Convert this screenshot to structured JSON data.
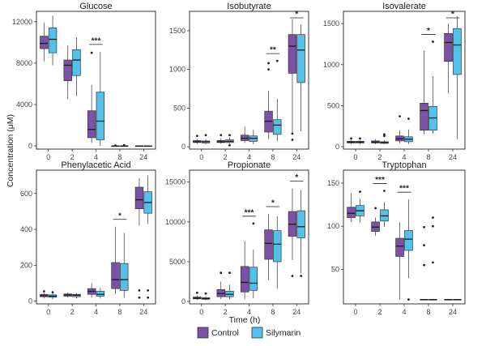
{
  "figure": {
    "xlabel": "Time (h)",
    "ylabel": "Concentration (μM)",
    "legend": {
      "entries": [
        "Control",
        "Silymarin"
      ],
      "colors": [
        "#7b52a7",
        "#55c1eb"
      ]
    },
    "edge_color": "#333333",
    "median_color": "#1a1a1a"
  },
  "chart_data": [
    {
      "type": "box",
      "title": "Glucose",
      "categories": [
        "0",
        "2",
        "4",
        "8",
        "24"
      ],
      "ylim": [
        -300,
        13000
      ],
      "yticks": [
        0,
        4000,
        8000,
        12000
      ],
      "series": [
        {
          "name": "Control",
          "boxes": [
            {
              "whislo": 8200,
              "q1": 9400,
              "med": 9900,
              "q3": 10600,
              "whishi": 11900,
              "fliers": []
            },
            {
              "whislo": 4500,
              "q1": 6300,
              "med": 7800,
              "q3": 8300,
              "whishi": 9700,
              "fliers": []
            },
            {
              "whislo": 300,
              "q1": 800,
              "med": 1600,
              "q3": 3400,
              "whishi": 5900,
              "fliers": [
                9000
              ]
            },
            {
              "whislo": 0,
              "q1": 0,
              "med": 0,
              "q3": 0,
              "whishi": 0,
              "fliers": [
                50
              ]
            },
            {
              "whislo": 0,
              "q1": 0,
              "med": 0,
              "q3": 0,
              "whishi": 0,
              "fliers": []
            }
          ]
        },
        {
          "name": "Silymarin",
          "boxes": [
            {
              "whislo": 7800,
              "q1": 9000,
              "med": 10300,
              "q3": 11400,
              "whishi": 12600,
              "fliers": []
            },
            {
              "whislo": 4800,
              "q1": 6800,
              "med": 8300,
              "q3": 9300,
              "whishi": 10500,
              "fliers": []
            },
            {
              "whislo": 0,
              "q1": 600,
              "med": 2400,
              "q3": 5200,
              "whishi": 9100,
              "fliers": []
            },
            {
              "whislo": 0,
              "q1": 0,
              "med": 0,
              "q3": 0,
              "whishi": 0,
              "fliers": [
                80
              ]
            },
            {
              "whislo": 0,
              "q1": 0,
              "med": 0,
              "q3": 0,
              "whishi": 0,
              "fliers": []
            }
          ]
        }
      ],
      "significance": [
        {
          "category": "4",
          "label": "***"
        }
      ]
    },
    {
      "type": "box",
      "title": "Isobutyrate",
      "categories": [
        "0",
        "2",
        "4",
        "8",
        "24"
      ],
      "ylim": [
        -30,
        1750
      ],
      "yticks": [
        0,
        500,
        1000,
        1500
      ],
      "series": [
        {
          "name": "Control",
          "boxes": [
            {
              "whislo": 40,
              "q1": 55,
              "med": 65,
              "q3": 80,
              "whishi": 100,
              "fliers": [
                140
              ]
            },
            {
              "whislo": 40,
              "q1": 55,
              "med": 65,
              "q3": 80,
              "whishi": 110,
              "fliers": [
                150
              ]
            },
            {
              "whislo": 50,
              "q1": 80,
              "med": 110,
              "q3": 150,
              "whishi": 260,
              "fliers": []
            },
            {
              "whislo": 100,
              "q1": 190,
              "med": 330,
              "q3": 460,
              "whishi": 720,
              "fliers": [
                1000,
                1080
              ]
            },
            {
              "whislo": 180,
              "q1": 950,
              "med": 1300,
              "q3": 1450,
              "whishi": 1650,
              "fliers": [
                90,
                170
              ]
            }
          ]
        },
        {
          "name": "Silymarin",
          "boxes": [
            {
              "whislo": 30,
              "q1": 50,
              "med": 65,
              "q3": 75,
              "whishi": 100,
              "fliers": [
                150
              ]
            },
            {
              "whislo": 40,
              "q1": 55,
              "med": 70,
              "q3": 90,
              "whishi": 120,
              "fliers": [
                20,
                150
              ]
            },
            {
              "whislo": 30,
              "q1": 70,
              "med": 110,
              "q3": 140,
              "whishi": 220,
              "fliers": []
            },
            {
              "whislo": 70,
              "q1": 160,
              "med": 280,
              "q3": 350,
              "whishi": 620,
              "fliers": [
                1110
              ]
            },
            {
              "whislo": 200,
              "q1": 830,
              "med": 1250,
              "q3": 1450,
              "whishi": 1580,
              "fliers": []
            }
          ]
        }
      ],
      "significance": [
        {
          "category": "8",
          "label": "**"
        },
        {
          "category": "24",
          "label": "*"
        }
      ]
    },
    {
      "type": "box",
      "title": "Isovalerate",
      "categories": [
        "0",
        "2",
        "4",
        "8",
        "24"
      ],
      "ylim": [
        -30,
        1650
      ],
      "yticks": [
        0,
        500,
        1000,
        1500
      ],
      "series": [
        {
          "name": "Control",
          "boxes": [
            {
              "whislo": 30,
              "q1": 45,
              "med": 55,
              "q3": 65,
              "whishi": 80,
              "fliers": [
                100
              ]
            },
            {
              "whislo": 30,
              "q1": 45,
              "med": 55,
              "q3": 70,
              "whishi": 90,
              "fliers": []
            },
            {
              "whislo": 40,
              "q1": 70,
              "med": 95,
              "q3": 130,
              "whishi": 200,
              "fliers": [
                370
              ]
            },
            {
              "whislo": 150,
              "q1": 200,
              "med": 440,
              "q3": 530,
              "whishi": 1170,
              "fliers": []
            },
            {
              "whislo": 650,
              "q1": 1040,
              "med": 1270,
              "q3": 1380,
              "whishi": 1500,
              "fliers": []
            }
          ]
        },
        {
          "name": "Silymarin",
          "boxes": [
            {
              "whislo": 30,
              "q1": 45,
              "med": 55,
              "q3": 65,
              "whishi": 80,
              "fliers": [
                100
              ]
            },
            {
              "whislo": 30,
              "q1": 40,
              "med": 50,
              "q3": 60,
              "whishi": 80,
              "fliers": [
                130,
                150
              ]
            },
            {
              "whislo": 30,
              "q1": 60,
              "med": 90,
              "q3": 120,
              "whishi": 210,
              "fliers": [
                340
              ]
            },
            {
              "whislo": 160,
              "q1": 200,
              "med": 350,
              "q3": 490,
              "whishi": 860,
              "fliers": [
                1280
              ]
            },
            {
              "whislo": 90,
              "q1": 880,
              "med": 1240,
              "q3": 1440,
              "whishi": 1590,
              "fliers": []
            }
          ]
        }
      ],
      "significance": [
        {
          "category": "8",
          "label": "*"
        },
        {
          "category": "24",
          "label": "*"
        }
      ]
    },
    {
      "type": "box",
      "title": "Phenylacetic Acid",
      "categories": [
        "0",
        "2",
        "4",
        "8",
        "24"
      ],
      "ylim": [
        -15,
        730
      ],
      "yticks": [
        0,
        200,
        400,
        600
      ],
      "series": [
        {
          "name": "Control",
          "boxes": [
            {
              "whislo": 15,
              "q1": 25,
              "med": 30,
              "q3": 38,
              "whishi": 45,
              "fliers": [
                55
              ]
            },
            {
              "whislo": 20,
              "q1": 28,
              "med": 35,
              "q3": 40,
              "whishi": 48,
              "fliers": []
            },
            {
              "whislo": 20,
              "q1": 38,
              "med": 55,
              "q3": 70,
              "whishi": 100,
              "fliers": []
            },
            {
              "whislo": 40,
              "q1": 70,
              "med": 120,
              "q3": 215,
              "whishi": 415,
              "fliers": []
            },
            {
              "whislo": 420,
              "q1": 515,
              "med": 565,
              "q3": 635,
              "whishi": 685,
              "fliers": [
                20,
                60
              ]
            }
          ]
        },
        {
          "name": "Silymarin",
          "boxes": [
            {
              "whislo": 10,
              "q1": 22,
              "med": 28,
              "q3": 35,
              "whishi": 42,
              "fliers": [
                50
              ]
            },
            {
              "whislo": 15,
              "q1": 25,
              "med": 33,
              "q3": 38,
              "whishi": 45,
              "fliers": []
            },
            {
              "whislo": 15,
              "q1": 28,
              "med": 38,
              "q3": 55,
              "whishi": 75,
              "fliers": []
            },
            {
              "whislo": 20,
              "q1": 60,
              "med": 120,
              "q3": 210,
              "whishi": 380,
              "fliers": []
            },
            {
              "whislo": 430,
              "q1": 490,
              "med": 550,
              "q3": 610,
              "whishi": 700,
              "fliers": [
                20,
                60
              ]
            }
          ]
        }
      ],
      "significance": [
        {
          "category": "8",
          "label": "*"
        }
      ]
    },
    {
      "type": "box",
      "title": "Propionate",
      "categories": [
        "0",
        "2",
        "4",
        "8",
        "24"
      ],
      "ylim": [
        -300,
        16500
      ],
      "yticks": [
        0,
        5000,
        10000,
        15000
      ],
      "series": [
        {
          "name": "Control",
          "boxes": [
            {
              "whislo": 200,
              "q1": 330,
              "med": 420,
              "q3": 550,
              "whishi": 750,
              "fliers": [
                1100
              ]
            },
            {
              "whislo": 300,
              "q1": 600,
              "med": 1000,
              "q3": 1500,
              "whishi": 2500,
              "fliers": [
                3600
              ]
            },
            {
              "whislo": 300,
              "q1": 1200,
              "med": 2400,
              "q3": 4400,
              "whishi": 7600,
              "fliers": []
            },
            {
              "whislo": 2700,
              "q1": 5300,
              "med": 7300,
              "q3": 9000,
              "whishi": 11000,
              "fliers": []
            },
            {
              "whislo": 5200,
              "q1": 8200,
              "med": 9700,
              "q3": 11300,
              "whishi": 14200,
              "fliers": [
                3200
              ]
            }
          ]
        },
        {
          "name": "Silymarin",
          "boxes": [
            {
              "whislo": 150,
              "q1": 280,
              "med": 350,
              "q3": 480,
              "whishi": 650,
              "fliers": [
                1000
              ]
            },
            {
              "whislo": 300,
              "q1": 600,
              "med": 900,
              "q3": 1300,
              "whishi": 2100,
              "fliers": [
                3600
              ]
            },
            {
              "whislo": 400,
              "q1": 1400,
              "med": 2300,
              "q3": 4300,
              "whishi": 6500,
              "fliers": [
                9800
              ]
            },
            {
              "whislo": 1600,
              "q1": 5000,
              "med": 7200,
              "q3": 8900,
              "whishi": 10700,
              "fliers": []
            },
            {
              "whislo": 3500,
              "q1": 8000,
              "med": 9400,
              "q3": 11400,
              "whishi": 14000,
              "fliers": [
                3200
              ]
            }
          ]
        }
      ],
      "significance": [
        {
          "category": "4",
          "label": "***"
        },
        {
          "category": "8",
          "label": "*"
        },
        {
          "category": "24",
          "label": "*"
        }
      ]
    },
    {
      "type": "box",
      "title": "Tryptophan",
      "categories": [
        "0",
        "2",
        "4",
        "8",
        "24"
      ],
      "ylim": [
        10,
        165
      ],
      "yticks": [
        50,
        100,
        150
      ],
      "series": [
        {
          "name": "Control",
          "boxes": [
            {
              "whislo": 105,
              "q1": 110,
              "med": 115,
              "q3": 122,
              "whishi": 138,
              "fliers": []
            },
            {
              "whislo": 89,
              "q1": 94,
              "med": 99,
              "q3": 105,
              "whishi": 110,
              "fliers": [
                121
              ]
            },
            {
              "whislo": 15,
              "q1": 65,
              "med": 77,
              "q3": 86,
              "whishi": 104,
              "fliers": []
            },
            {
              "whislo": 15,
              "q1": 15,
              "med": 15,
              "q3": 15,
              "whishi": 15,
              "fliers": [
                55,
                78,
                99
              ]
            },
            {
              "whislo": 15,
              "q1": 15,
              "med": 15,
              "q3": 15,
              "whishi": 15,
              "fliers": []
            }
          ]
        },
        {
          "name": "Silymarin",
          "boxes": [
            {
              "whislo": 104,
              "q1": 112,
              "med": 118,
              "q3": 124,
              "whishi": 132,
              "fliers": [
                140
              ]
            },
            {
              "whislo": 99,
              "q1": 106,
              "med": 112,
              "q3": 119,
              "whishi": 128,
              "fliers": [
                141
              ]
            },
            {
              "whislo": 40,
              "q1": 72,
              "med": 85,
              "q3": 95,
              "whishi": 131,
              "fliers": [
                15
              ]
            },
            {
              "whislo": 15,
              "q1": 15,
              "med": 15,
              "q3": 15,
              "whishi": 15,
              "fliers": [
                58,
                100,
                110
              ]
            },
            {
              "whislo": 15,
              "q1": 15,
              "med": 15,
              "q3": 15,
              "whishi": 15,
              "fliers": []
            }
          ]
        }
      ],
      "significance": [
        {
          "category": "2",
          "label": "***"
        },
        {
          "category": "4",
          "label": "***"
        }
      ]
    }
  ]
}
